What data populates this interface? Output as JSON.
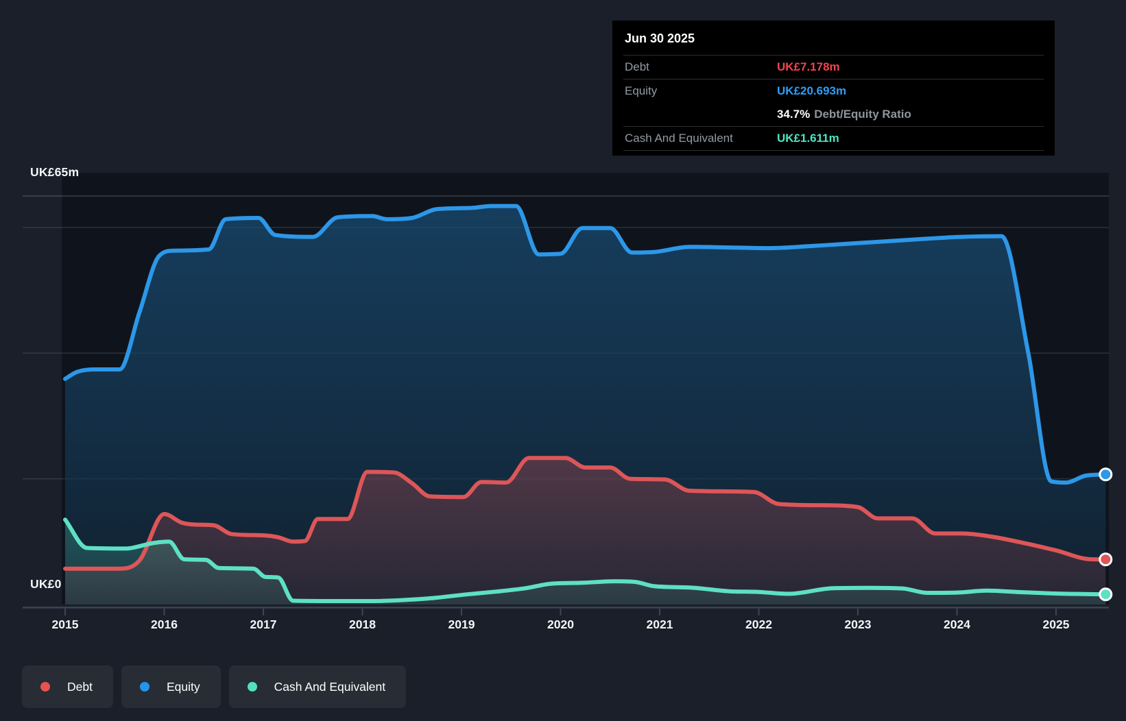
{
  "page": {
    "background": "#1a1f29",
    "plot_background": "#0f141c"
  },
  "chart_data": {
    "type": "area",
    "x_axis": {
      "years": [
        2015,
        2016,
        2017,
        2018,
        2019,
        2020,
        2021,
        2022,
        2023,
        2024,
        2025
      ],
      "range": [
        2015,
        2025.55
      ]
    },
    "y_axis": {
      "unit": "UK£m",
      "min": 0,
      "max": 65,
      "top_label": "UK£65m",
      "zero_label": "UK£0",
      "gridlines": [
        65,
        60,
        40,
        20
      ],
      "grid": "on"
    },
    "legend_position": "bottom-left",
    "series": [
      {
        "name": "Debt",
        "color": "#dd5658",
        "fill": "#e05555",
        "points": [
          [
            2015.0,
            5.7
          ],
          [
            2015.55,
            5.7
          ],
          [
            2015.75,
            7.0
          ],
          [
            2016.0,
            14.4
          ],
          [
            2016.18,
            13.0
          ],
          [
            2016.32,
            12.7
          ],
          [
            2016.5,
            12.6
          ],
          [
            2016.68,
            11.2
          ],
          [
            2017.0,
            11.0
          ],
          [
            2017.15,
            10.7
          ],
          [
            2017.3,
            10.0
          ],
          [
            2017.42,
            10.1
          ],
          [
            2017.55,
            13.6
          ],
          [
            2017.85,
            13.6
          ],
          [
            2018.05,
            21.1
          ],
          [
            2018.32,
            21.0
          ],
          [
            2018.5,
            19.3
          ],
          [
            2018.68,
            17.2
          ],
          [
            2019.02,
            17.1
          ],
          [
            2019.2,
            19.5
          ],
          [
            2019.45,
            19.4
          ],
          [
            2019.68,
            23.3
          ],
          [
            2020.05,
            23.3
          ],
          [
            2020.25,
            21.8
          ],
          [
            2020.5,
            21.8
          ],
          [
            2020.7,
            20.0
          ],
          [
            2021.05,
            19.9
          ],
          [
            2021.3,
            18.1
          ],
          [
            2021.95,
            17.9
          ],
          [
            2022.2,
            16.0
          ],
          [
            2022.6,
            15.8
          ],
          [
            2023.0,
            15.5
          ],
          [
            2023.2,
            13.7
          ],
          [
            2023.55,
            13.7
          ],
          [
            2023.78,
            11.3
          ],
          [
            2024.05,
            11.3
          ],
          [
            2024.35,
            10.8
          ],
          [
            2024.7,
            9.7
          ],
          [
            2025.0,
            8.6
          ],
          [
            2025.35,
            7.2
          ],
          [
            2025.5,
            7.178
          ]
        ]
      },
      {
        "name": "Equity",
        "color": "#2d97e8",
        "fill": "#2496e8",
        "points": [
          [
            2015.0,
            35.9
          ],
          [
            2015.12,
            37.0
          ],
          [
            2015.3,
            37.4
          ],
          [
            2015.55,
            37.4
          ],
          [
            2015.75,
            46.5
          ],
          [
            2015.95,
            55.5
          ],
          [
            2016.1,
            56.3
          ],
          [
            2016.45,
            56.5
          ],
          [
            2016.62,
            61.3
          ],
          [
            2016.95,
            61.5
          ],
          [
            2017.12,
            58.8
          ],
          [
            2017.5,
            58.5
          ],
          [
            2017.75,
            61.6
          ],
          [
            2018.1,
            61.8
          ],
          [
            2018.25,
            61.3
          ],
          [
            2018.5,
            61.5
          ],
          [
            2018.75,
            62.9
          ],
          [
            2019.1,
            63.1
          ],
          [
            2019.3,
            63.4
          ],
          [
            2019.55,
            63.4
          ],
          [
            2019.78,
            55.7
          ],
          [
            2020.0,
            55.8
          ],
          [
            2020.22,
            59.9
          ],
          [
            2020.5,
            59.9
          ],
          [
            2020.72,
            56.0
          ],
          [
            2020.95,
            56.1
          ],
          [
            2021.3,
            56.9
          ],
          [
            2021.7,
            56.8
          ],
          [
            2022.1,
            56.7
          ],
          [
            2022.5,
            57.0
          ],
          [
            2022.9,
            57.4
          ],
          [
            2023.3,
            57.8
          ],
          [
            2023.7,
            58.2
          ],
          [
            2024.05,
            58.5
          ],
          [
            2024.45,
            58.6
          ],
          [
            2024.72,
            40.0
          ],
          [
            2024.95,
            19.6
          ],
          [
            2025.1,
            19.4
          ],
          [
            2025.3,
            20.5
          ],
          [
            2025.5,
            20.693
          ]
        ]
      },
      {
        "name": "Cash And Equivalent",
        "color": "#5ee0c5",
        "fill": "#55dfc0",
        "points": [
          [
            2015.0,
            13.5
          ],
          [
            2015.22,
            9.0
          ],
          [
            2015.6,
            8.9
          ],
          [
            2015.9,
            9.8
          ],
          [
            2016.05,
            10.0
          ],
          [
            2016.2,
            7.2
          ],
          [
            2016.42,
            7.1
          ],
          [
            2016.55,
            5.8
          ],
          [
            2016.9,
            5.7
          ],
          [
            2017.02,
            4.4
          ],
          [
            2017.15,
            4.3
          ],
          [
            2017.3,
            0.6
          ],
          [
            2017.7,
            0.55
          ],
          [
            2018.1,
            0.55
          ],
          [
            2018.4,
            0.7
          ],
          [
            2018.7,
            1.0
          ],
          [
            2019.05,
            1.6
          ],
          [
            2019.35,
            2.05
          ],
          [
            2019.65,
            2.6
          ],
          [
            2019.9,
            3.3
          ],
          [
            2020.2,
            3.45
          ],
          [
            2020.55,
            3.7
          ],
          [
            2020.75,
            3.6
          ],
          [
            2020.95,
            2.9
          ],
          [
            2021.3,
            2.7
          ],
          [
            2021.7,
            2.1
          ],
          [
            2022.0,
            2.0
          ],
          [
            2022.3,
            1.7
          ],
          [
            2022.75,
            2.6
          ],
          [
            2023.1,
            2.65
          ],
          [
            2023.45,
            2.55
          ],
          [
            2023.7,
            1.85
          ],
          [
            2024.0,
            1.9
          ],
          [
            2024.3,
            2.2
          ],
          [
            2024.6,
            2.0
          ],
          [
            2025.0,
            1.75
          ],
          [
            2025.5,
            1.611
          ]
        ]
      }
    ]
  },
  "tooltip": {
    "title": "Jun 30 2025",
    "debt_label": "Debt",
    "debt_value": "UK£7.178m",
    "equity_label": "Equity",
    "equity_value": "UK£20.693m",
    "ratio_value": "34.7%",
    "ratio_label": "Debt/Equity Ratio",
    "cash_label": "Cash And Equivalent",
    "cash_value": "UK£1.611m"
  },
  "legend": {
    "items": [
      {
        "label": "Debt",
        "color": "#e8534f"
      },
      {
        "label": "Equity",
        "color": "#2496e8"
      },
      {
        "label": "Cash And Equivalent",
        "color": "#55dfc0"
      }
    ]
  },
  "colors": {
    "debt_value_text": "#f2444d",
    "equity_value_text": "#2e9df5",
    "cash_value_text": "#4de6c4",
    "axis_text": "#f4f6f8",
    "grid_line": "#39404c",
    "axis_line": "#3e4552",
    "tooltip_bg": "#000000",
    "legend_chip_bg": "#272c35"
  }
}
